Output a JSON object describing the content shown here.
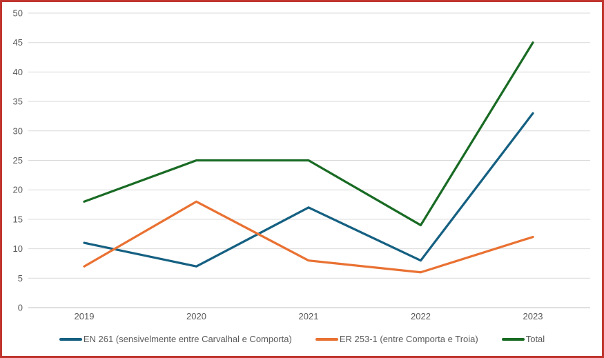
{
  "chart_data": {
    "type": "line",
    "categories": [
      "2019",
      "2020",
      "2021",
      "2022",
      "2023"
    ],
    "series": [
      {
        "name": "EN 261 (sensivelmente entre Carvalhal e Comporta)",
        "color": "#156082",
        "values": [
          11,
          7,
          17,
          8,
          33
        ]
      },
      {
        "name": "ER 253-1 (entre Comporta e Troia)",
        "color": "#E97132",
        "values": [
          7,
          18,
          8,
          6,
          12
        ]
      },
      {
        "name": "Total",
        "color": "#196B24",
        "values": [
          18,
          25,
          25,
          14,
          45
        ]
      }
    ],
    "title": "",
    "xlabel": "",
    "ylabel": "",
    "ylim": [
      0,
      50
    ],
    "ytick_step": 5,
    "grid": true,
    "legend_position": "bottom"
  },
  "style": {
    "frame_border_color": "#C1352F",
    "gridline_color": "#D9D9D9",
    "axis_line_color": "#BFBFBF",
    "label_color": "#595959",
    "background": "#FFFFFF"
  }
}
